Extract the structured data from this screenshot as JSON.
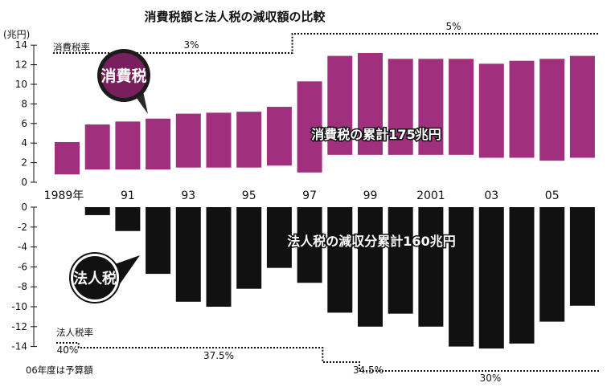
{
  "colors": {
    "consumption": "#a0307e",
    "corporate": "#111111",
    "background": "#ffffff",
    "text": "#111111",
    "badge_consumption_fill": "#7a1f5e",
    "badge_corporate_fill": "#111111"
  },
  "chart_data": [
    {
      "type": "bar",
      "title": "消費税額と法人税の減収額の比較",
      "unit_label": "(兆円)",
      "badge": "消費税",
      "total_annotation": "消費税の累計175兆円",
      "categories": [
        "1989年",
        "90",
        "91",
        "92",
        "93",
        "94",
        "95",
        "96",
        "97",
        "98",
        "99",
        "2000",
        "2001",
        "02",
        "03",
        "04",
        "05",
        "06"
      ],
      "x_tick_labels": [
        "1989年",
        "91",
        "93",
        "95",
        "97",
        "99",
        "2001",
        "03",
        "05"
      ],
      "x_tick_indices": [
        0,
        2,
        4,
        6,
        8,
        10,
        12,
        14,
        16
      ],
      "series": [
        {
          "values": [
            3.3,
            4.6,
            4.9,
            5.2,
            5.5,
            5.6,
            5.7,
            6.0,
            9.3,
            10.1,
            10.4,
            9.8,
            9.8,
            9.8,
            9.6,
            9.9,
            10.4,
            10.4
          ]
        }
      ],
      "bar_bottoms": [
        0.8,
        1.3,
        1.3,
        1.3,
        1.5,
        1.5,
        1.5,
        1.7,
        1.0,
        2.8,
        2.8,
        2.8,
        2.8,
        2.8,
        2.5,
        2.5,
        2.2,
        2.5
      ],
      "ylim": [
        0,
        14
      ],
      "y_ticks": [
        0,
        2,
        4,
        6,
        8,
        10,
        12,
        14
      ],
      "rate_line": {
        "label": "消費税率",
        "segments": [
          {
            "from": "1989年",
            "to": "96",
            "rate": "3%"
          },
          {
            "from": "97",
            "to": "06",
            "rate": "5%"
          }
        ]
      }
    },
    {
      "type": "bar",
      "badge": "法人税",
      "total_annotation": "法人税の減収分累計160兆円",
      "categories": [
        "1989年",
        "90",
        "91",
        "92",
        "93",
        "94",
        "95",
        "96",
        "97",
        "98",
        "99",
        "2000",
        "2001",
        "02",
        "03",
        "04",
        "05",
        "06"
      ],
      "series": [
        {
          "values": [
            null,
            -0.8,
            -2.4,
            -6.7,
            -9.5,
            -10.0,
            -8.2,
            -6.1,
            -7.6,
            -10.6,
            -12.0,
            -10.7,
            -12.0,
            -14.0,
            -14.2,
            -13.7,
            -11.5,
            -9.9
          ]
        }
      ],
      "ylim": [
        -14,
        0
      ],
      "y_ticks": [
        0,
        -2,
        -4,
        -6,
        -8,
        -10,
        -12,
        -14
      ],
      "rate_line": {
        "label": "法人税率",
        "segments": [
          {
            "from": "1989年",
            "to": "89",
            "rate": "40%"
          },
          {
            "from": "90",
            "to": "97",
            "rate": "37.5%"
          },
          {
            "from": "98",
            "to": "98",
            "rate": "34.5%"
          },
          {
            "from": "99",
            "to": "06",
            "rate": "30%"
          }
        ]
      },
      "footnote": "06年度は予算額"
    }
  ]
}
